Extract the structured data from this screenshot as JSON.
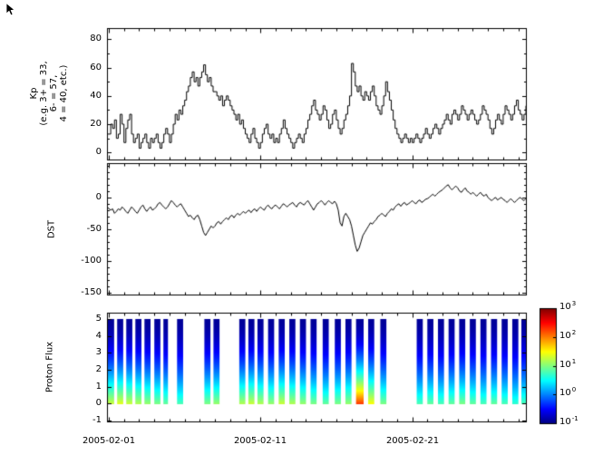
{
  "window": {
    "background": "#ffffff"
  },
  "icons": {
    "mouse_cursor": "arrow-pointer"
  },
  "x_axis": {
    "tick_labels": [
      "2005-02-01",
      "2005-02-11",
      "2005-02-21"
    ],
    "tick_days": [
      0,
      10,
      20
    ],
    "range_days": [
      -0.12,
      27.5
    ],
    "minor_tick_every_days": 1
  },
  "chart_data": [
    {
      "type": "line",
      "style": "step",
      "ylabel": "Kp (e.g. 3+ = 33, 6- = 57, 4 = 40, etc.)",
      "ylabel_multiline": "Kp\n(e.g. 3+ = 33,\n6- = 57,\n4 = 40, etc.)",
      "ylim": [
        -5,
        88
      ],
      "yticks": [
        0,
        20,
        40,
        60,
        80
      ],
      "y_minor_step": 10,
      "x_start_day": 0,
      "x_step_days": 0.125,
      "line_color": "#000000",
      "values": [
        13,
        20,
        17,
        23,
        10,
        13,
        27,
        20,
        7,
        17,
        23,
        27,
        13,
        7,
        10,
        13,
        3,
        7,
        10,
        13,
        7,
        3,
        10,
        7,
        10,
        13,
        7,
        3,
        7,
        13,
        17,
        13,
        7,
        13,
        20,
        27,
        23,
        30,
        27,
        33,
        37,
        43,
        47,
        53,
        57,
        50,
        53,
        47,
        53,
        57,
        62,
        55,
        50,
        53,
        47,
        43,
        43,
        40,
        37,
        40,
        33,
        37,
        40,
        37,
        33,
        30,
        27,
        23,
        27,
        20,
        23,
        17,
        13,
        10,
        7,
        13,
        17,
        10,
        7,
        3,
        7,
        13,
        17,
        20,
        13,
        10,
        13,
        7,
        10,
        7,
        13,
        17,
        23,
        17,
        13,
        10,
        7,
        3,
        7,
        10,
        13,
        10,
        7,
        13,
        17,
        23,
        27,
        33,
        37,
        30,
        27,
        23,
        27,
        33,
        30,
        23,
        17,
        20,
        27,
        30,
        23,
        17,
        13,
        17,
        23,
        27,
        33,
        40,
        63,
        57,
        47,
        43,
        47,
        40,
        37,
        43,
        40,
        37,
        43,
        47,
        40,
        33,
        30,
        27,
        33,
        40,
        50,
        43,
        37,
        30,
        23,
        17,
        13,
        10,
        7,
        10,
        13,
        10,
        7,
        10,
        7,
        10,
        13,
        10,
        7,
        10,
        13,
        17,
        13,
        10,
        13,
        17,
        20,
        17,
        13,
        17,
        20,
        23,
        27,
        23,
        20,
        27,
        30,
        27,
        23,
        27,
        33,
        30,
        27,
        23,
        27,
        30,
        27,
        23,
        20,
        23,
        27,
        33,
        30,
        27,
        23,
        17,
        13,
        17,
        23,
        27,
        23,
        20,
        27,
        33,
        30,
        27,
        23,
        27,
        33,
        37,
        30,
        27,
        23,
        27,
        33,
        40,
        37,
        40
      ]
    },
    {
      "type": "line",
      "style": "line",
      "ylabel": "DST",
      "ylim": [
        -153,
        54
      ],
      "yticks": [
        0,
        -50,
        -100,
        -150
      ],
      "y_minor_step": 10,
      "x_start_day": 0,
      "x_step_days": 0.125,
      "line_color": "#000000",
      "values": [
        -15,
        -20,
        -18,
        -25,
        -22,
        -18,
        -20,
        -15,
        -18,
        -22,
        -25,
        -20,
        -15,
        -18,
        -22,
        -25,
        -20,
        -15,
        -12,
        -18,
        -22,
        -18,
        -15,
        -20,
        -18,
        -15,
        -10,
        -8,
        -12,
        -15,
        -18,
        -15,
        -10,
        -5,
        -8,
        -12,
        -15,
        -12,
        -10,
        -15,
        -20,
        -25,
        -30,
        -28,
        -32,
        -35,
        -30,
        -28,
        -35,
        -45,
        -55,
        -60,
        -55,
        -50,
        -45,
        -48,
        -45,
        -40,
        -38,
        -42,
        -38,
        -35,
        -32,
        -35,
        -30,
        -28,
        -32,
        -28,
        -25,
        -28,
        -25,
        -22,
        -25,
        -22,
        -20,
        -24,
        -20,
        -18,
        -22,
        -18,
        -15,
        -18,
        -20,
        -15,
        -12,
        -16,
        -18,
        -14,
        -12,
        -15,
        -18,
        -14,
        -10,
        -12,
        -15,
        -12,
        -10,
        -8,
        -12,
        -15,
        -10,
        -8,
        -10,
        -12,
        -8,
        -5,
        -10,
        -15,
        -20,
        -15,
        -10,
        -8,
        -5,
        -8,
        -12,
        -8,
        -5,
        -8,
        -10,
        -6,
        -10,
        -20,
        -40,
        -45,
        -30,
        -25,
        -30,
        -35,
        -45,
        -60,
        -75,
        -85,
        -80,
        -70,
        -60,
        -55,
        -50,
        -45,
        -40,
        -42,
        -38,
        -35,
        -30,
        -28,
        -25,
        -28,
        -30,
        -25,
        -22,
        -18,
        -20,
        -15,
        -12,
        -10,
        -14,
        -10,
        -8,
        -12,
        -10,
        -8,
        -5,
        -8,
        -10,
        -6,
        -4,
        -8,
        -6,
        -3,
        -2,
        0,
        3,
        5,
        2,
        5,
        8,
        10,
        12,
        15,
        18,
        20,
        15,
        12,
        15,
        18,
        15,
        10,
        8,
        12,
        15,
        10,
        8,
        5,
        8,
        5,
        2,
        5,
        8,
        4,
        2,
        5,
        0,
        -3,
        -5,
        -2,
        0,
        -4,
        -2,
        0,
        -3,
        -5,
        -8,
        -5,
        -2,
        -5,
        -8,
        -5,
        -2,
        0,
        -3,
        -5,
        -2,
        0,
        -3,
        -2
      ]
    },
    {
      "type": "heatmap",
      "ylabel": "Proton Flux",
      "ylim": [
        -1.05,
        5.37
      ],
      "yticks": [
        -1,
        0,
        1,
        2,
        3,
        4,
        5
      ],
      "stripe_y_range": [
        0,
        5
      ],
      "colormap": "jet",
      "clim_log10": [
        -1,
        3
      ],
      "top_log10": -0.9,
      "profile_power": 1.7,
      "stripes_day_width_bottomlog": [
        [
          -0.1,
          0.45,
          1.3
        ],
        [
          0.55,
          0.4,
          1.4
        ],
        [
          1.15,
          0.4,
          1.3
        ],
        [
          1.75,
          0.4,
          1.2
        ],
        [
          2.35,
          0.4,
          1.1
        ],
        [
          3.0,
          0.4,
          1.0
        ],
        [
          3.6,
          0.3,
          0.9
        ],
        [
          4.5,
          0.4,
          0.8
        ],
        [
          6.3,
          0.4,
          1.0
        ],
        [
          6.9,
          0.4,
          1.1
        ],
        [
          8.6,
          0.4,
          1.2
        ],
        [
          9.2,
          0.4,
          1.3
        ],
        [
          9.8,
          0.4,
          1.2
        ],
        [
          10.5,
          0.4,
          1.1
        ],
        [
          11.2,
          0.4,
          1.3
        ],
        [
          11.9,
          0.4,
          1.2
        ],
        [
          12.6,
          0.4,
          1.1
        ],
        [
          13.3,
          0.4,
          1.0
        ],
        [
          14.1,
          0.4,
          0.9
        ],
        [
          14.9,
          0.4,
          1.0
        ],
        [
          15.6,
          0.4,
          1.1
        ],
        [
          16.3,
          0.5,
          2.3
        ],
        [
          17.1,
          0.4,
          1.5
        ],
        [
          17.9,
          0.4,
          1.0
        ],
        [
          20.3,
          0.4,
          0.8
        ],
        [
          21.0,
          0.4,
          0.9
        ],
        [
          21.7,
          0.4,
          0.8
        ],
        [
          22.4,
          0.4,
          0.9
        ],
        [
          23.1,
          0.4,
          1.0
        ],
        [
          23.8,
          0.4,
          0.9
        ],
        [
          24.5,
          0.4,
          0.8
        ],
        [
          25.2,
          0.4,
          0.9
        ],
        [
          25.9,
          0.4,
          0.8
        ],
        [
          26.6,
          0.4,
          0.7
        ],
        [
          27.2,
          0.35,
          0.8
        ]
      ],
      "colorbar": {
        "base": "10",
        "tick_exponents": [
          3,
          2,
          1,
          0,
          -1
        ]
      }
    }
  ]
}
